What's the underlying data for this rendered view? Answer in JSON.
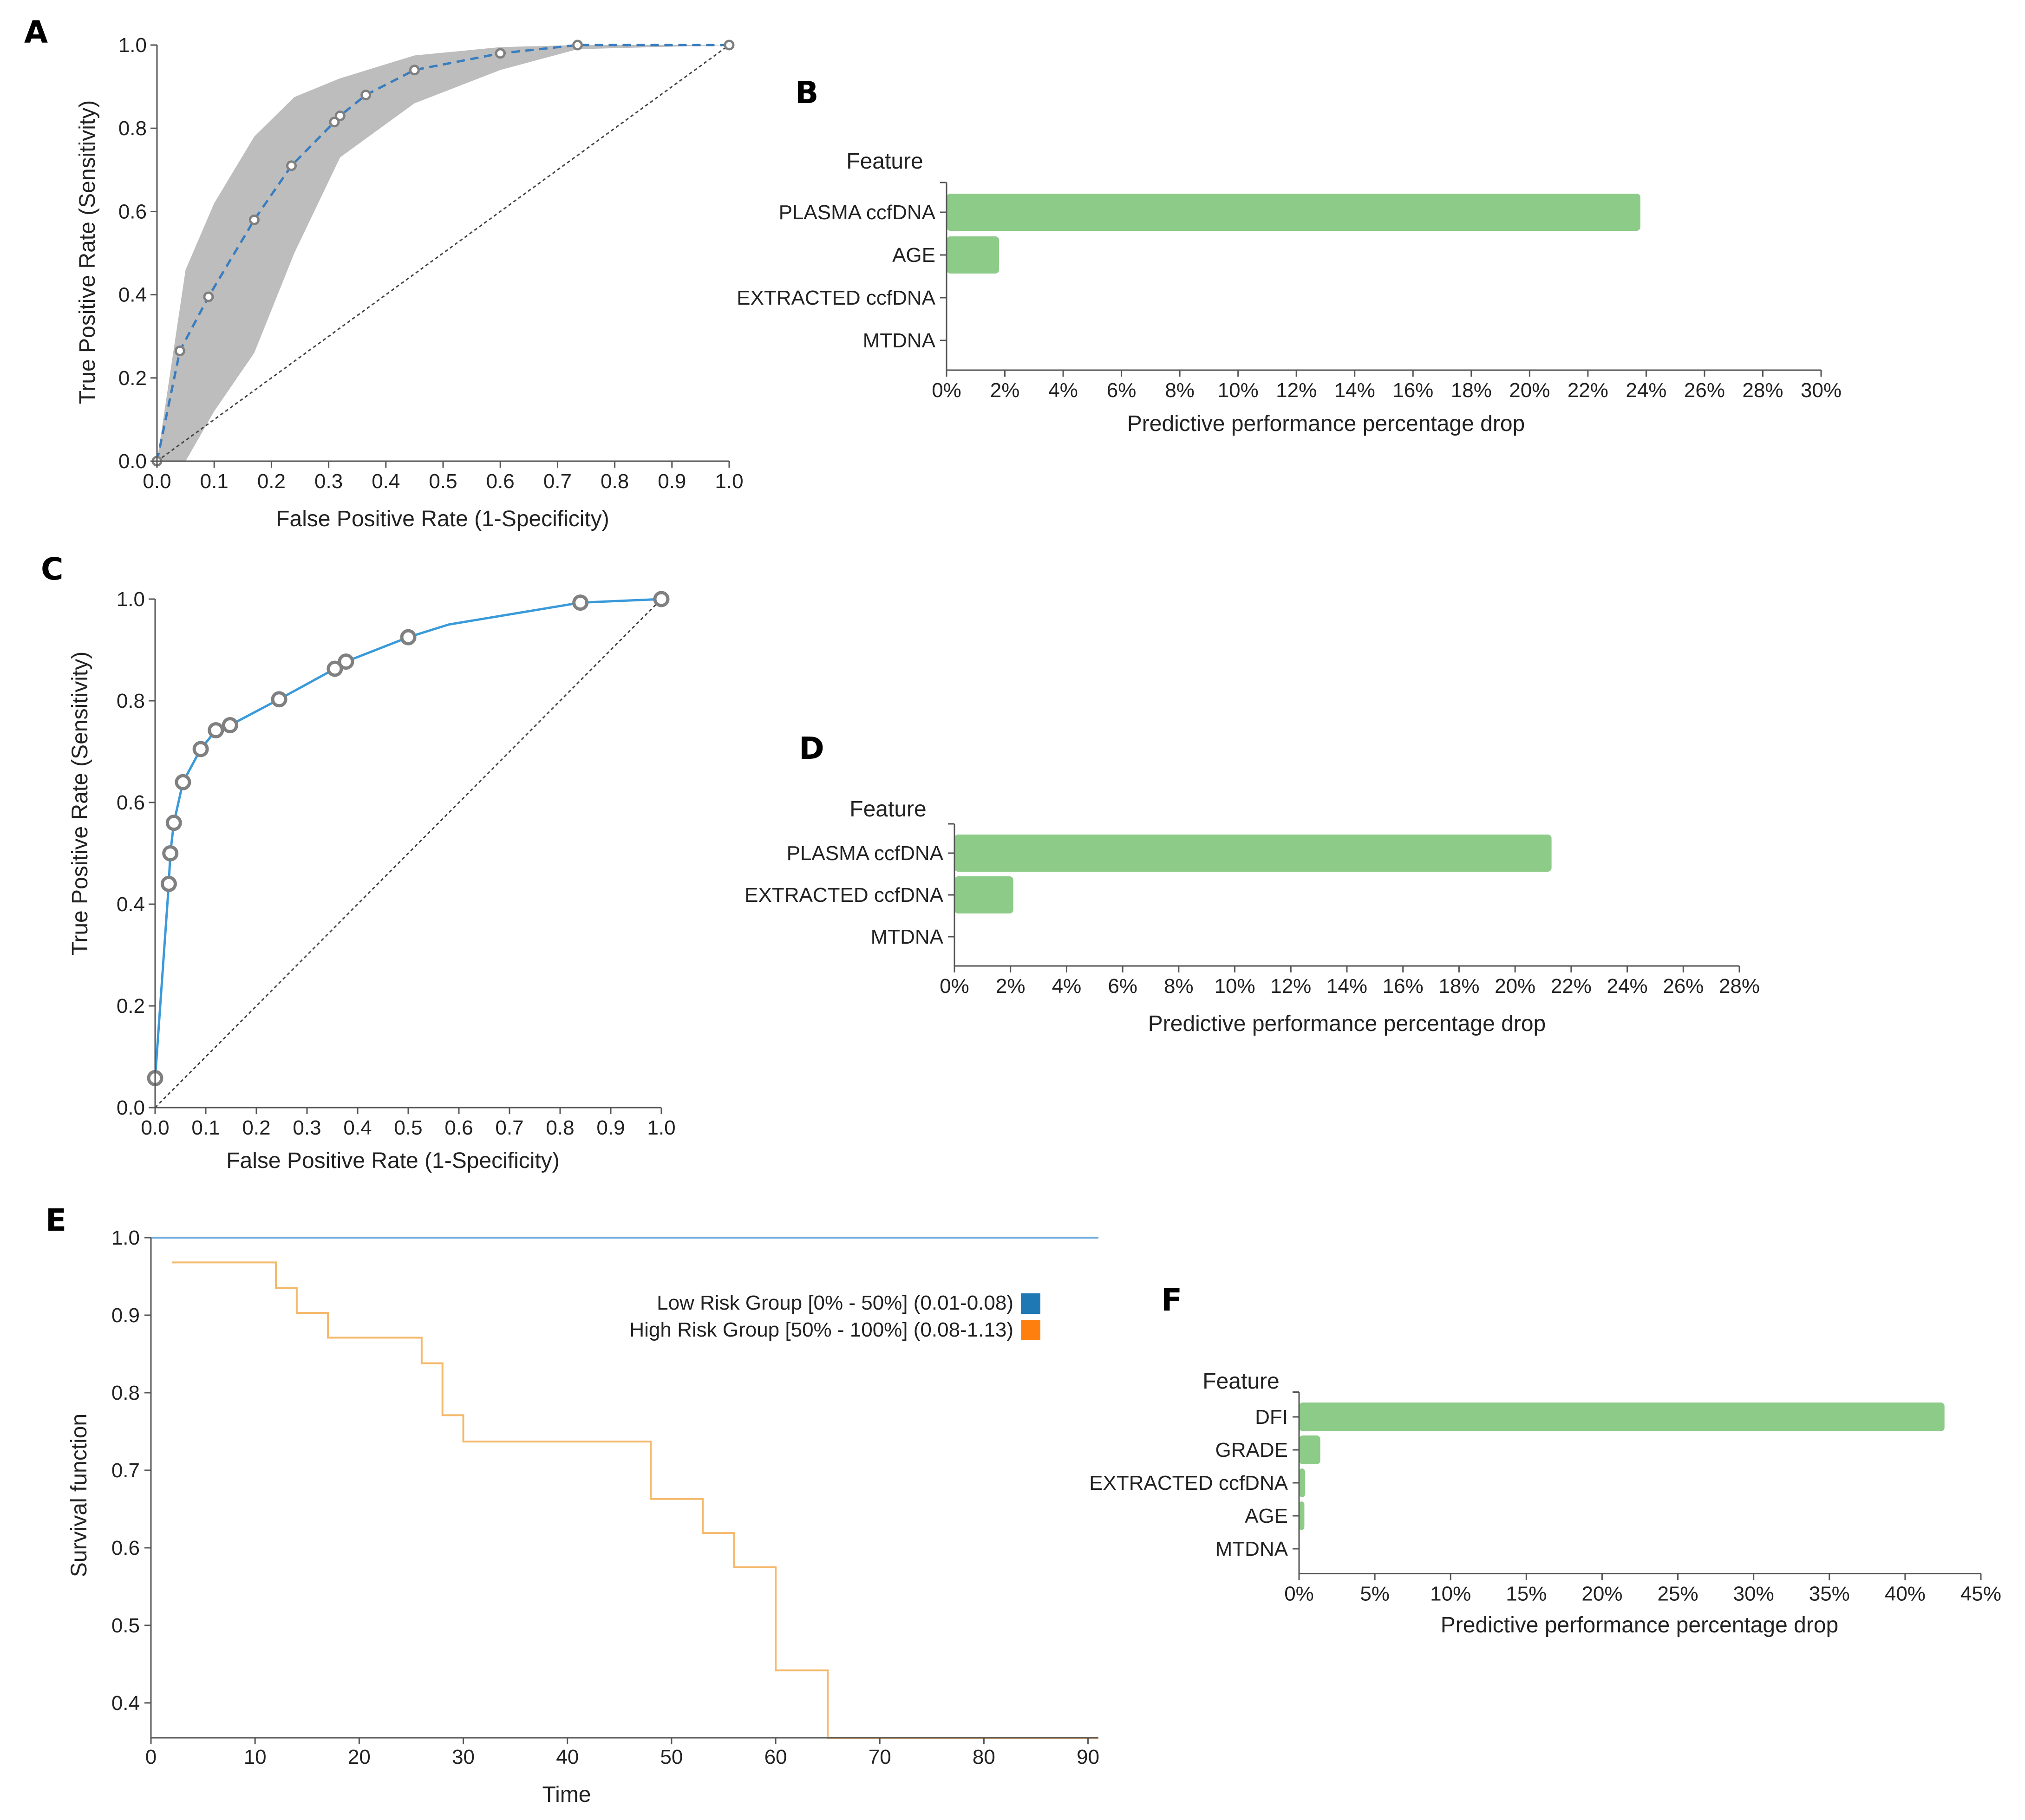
{
  "panels": {
    "a": "A",
    "b": "B",
    "c": "C",
    "d": "D",
    "e": "E",
    "f": "F"
  },
  "colors": {
    "band": "#bdbdbd",
    "roc_a": "#3a7dbf",
    "roc_c": "#3a9ad9",
    "marker_fill": "#ffffff",
    "marker_stroke": "#808080",
    "bar": "#8dcb88",
    "low_risk": "#1f77b4",
    "high_risk": "#ff7f0e",
    "km_low_line": "#6aa8dd",
    "km_high_line": "#f5b96b"
  },
  "chart_data": [
    {
      "id": "A",
      "type": "line",
      "title": "",
      "xlabel": "False Positive Rate (1-Specificity)",
      "ylabel": "True Positive Rate (Sensitivity)",
      "xlim": [
        0,
        1
      ],
      "ylim": [
        0,
        1
      ],
      "xticks": [
        "0.0",
        "0.1",
        "0.2",
        "0.3",
        "0.4",
        "0.5",
        "0.6",
        "0.7",
        "0.8",
        "0.9",
        "1.0"
      ],
      "yticks": [
        "0.0",
        "0.2",
        "0.4",
        "0.6",
        "0.8",
        "1.0"
      ],
      "x": [
        0.0,
        0.04,
        0.09,
        0.17,
        0.235,
        0.31,
        0.32,
        0.365,
        0.45,
        0.6,
        0.735,
        1.0
      ],
      "y": [
        0.0,
        0.265,
        0.395,
        0.58,
        0.71,
        0.815,
        0.83,
        0.88,
        0.94,
        0.98,
        1.0,
        1.0
      ],
      "band_x": [
        0.0,
        0.05,
        0.1,
        0.17,
        0.24,
        0.32,
        0.45,
        0.6,
        0.735,
        1.0
      ],
      "band_upper": [
        0.0,
        0.46,
        0.62,
        0.78,
        0.875,
        0.92,
        0.975,
        0.995,
        1.0,
        1.0
      ],
      "band_lower": [
        0.0,
        0.0,
        0.12,
        0.26,
        0.5,
        0.73,
        0.86,
        0.94,
        0.99,
        1.0
      ],
      "diagonal": true
    },
    {
      "id": "B",
      "type": "bar",
      "orientation": "horizontal",
      "title": "Feature",
      "xlabel": "Predictive performance percentage drop",
      "categories": [
        "PLASMA ccfDNA",
        "AGE",
        "EXTRACTED ccfDNA",
        "MTDNA"
      ],
      "values": [
        23.8,
        1.8,
        0,
        0
      ],
      "xlim": [
        0,
        30
      ],
      "xticks": [
        "0%",
        "2%",
        "4%",
        "6%",
        "8%",
        "10%",
        "12%",
        "14%",
        "16%",
        "18%",
        "20%",
        "22%",
        "24%",
        "26%",
        "28%",
        "30%"
      ]
    },
    {
      "id": "C",
      "type": "line",
      "title": "",
      "xlabel": "False Positive Rate (1-Specificity)",
      "ylabel": "True Positive Rate (Sensitivity)",
      "xlim": [
        0,
        1
      ],
      "ylim": [
        0,
        1
      ],
      "xticks": [
        "0.0",
        "0.1",
        "0.2",
        "0.3",
        "0.4",
        "0.5",
        "0.6",
        "0.7",
        "0.8",
        "0.9",
        "1.0"
      ],
      "yticks": [
        "0.0",
        "0.2",
        "0.4",
        "0.6",
        "0.8",
        "1.0"
      ],
      "x": [
        0.0,
        0.027,
        0.03,
        0.037,
        0.055,
        0.09,
        0.12,
        0.148,
        0.245,
        0.355,
        0.377,
        0.5,
        0.58,
        0.84,
        1.0
      ],
      "y": [
        0.058,
        0.44,
        0.5,
        0.56,
        0.64,
        0.705,
        0.742,
        0.752,
        0.803,
        0.863,
        0.877,
        0.925,
        0.95,
        0.993,
        1.0
      ],
      "markers": [
        true,
        true,
        true,
        true,
        true,
        true,
        true,
        true,
        true,
        true,
        true,
        true,
        false,
        true,
        true
      ],
      "diagonal": true
    },
    {
      "id": "D",
      "type": "bar",
      "orientation": "horizontal",
      "title": "Feature",
      "xlabel": "Predictive performance percentage drop",
      "categories": [
        "PLASMA ccfDNA",
        "EXTRACTED ccfDNA",
        "MTDNA"
      ],
      "values": [
        21.3,
        2.1,
        0
      ],
      "xlim": [
        0,
        28
      ],
      "xticks": [
        "0%",
        "2%",
        "4%",
        "6%",
        "8%",
        "10%",
        "12%",
        "14%",
        "16%",
        "18%",
        "20%",
        "22%",
        "24%",
        "26%",
        "28%"
      ]
    },
    {
      "id": "E",
      "type": "line",
      "step": true,
      "title": "",
      "xlabel": "Time",
      "ylabel": "Survival function",
      "xlim": [
        0,
        91
      ],
      "ylim": [
        0.355,
        1.0
      ],
      "xticks": [
        "0",
        "10",
        "20",
        "30",
        "40",
        "50",
        "60",
        "70",
        "80",
        "90"
      ],
      "yticks": [
        "0.4",
        "0.5",
        "0.6",
        "0.7",
        "0.8",
        "0.9",
        "1.0"
      ],
      "series": [
        {
          "name": "Low Risk Group [0% - 50%] (0.01-0.08)",
          "x": [
            0,
            91
          ],
          "y": [
            1.0,
            1.0
          ]
        },
        {
          "name": "High Risk Group [50% - 100%] (0.08-1.13)",
          "x": [
            2,
            12,
            14,
            17,
            26,
            28,
            30,
            48,
            53,
            56,
            60,
            65,
            91
          ],
          "y": [
            0.968,
            0.935,
            0.903,
            0.871,
            0.838,
            0.771,
            0.737,
            0.663,
            0.619,
            0.575,
            0.442,
            0.355,
            0.355
          ]
        }
      ]
    },
    {
      "id": "F",
      "type": "bar",
      "orientation": "horizontal",
      "title": "Feature",
      "xlabel": "Predictive performance percentage drop",
      "categories": [
        "DFI",
        "GRADE",
        "EXTRACTED ccfDNA",
        "AGE",
        "MTDNA"
      ],
      "values": [
        42.6,
        1.4,
        0.4,
        0.35,
        0
      ],
      "xlim": [
        0,
        45
      ],
      "xticks": [
        "0%",
        "5%",
        "10%",
        "15%",
        "20%",
        "25%",
        "30%",
        "35%",
        "40%",
        "45%"
      ]
    }
  ]
}
